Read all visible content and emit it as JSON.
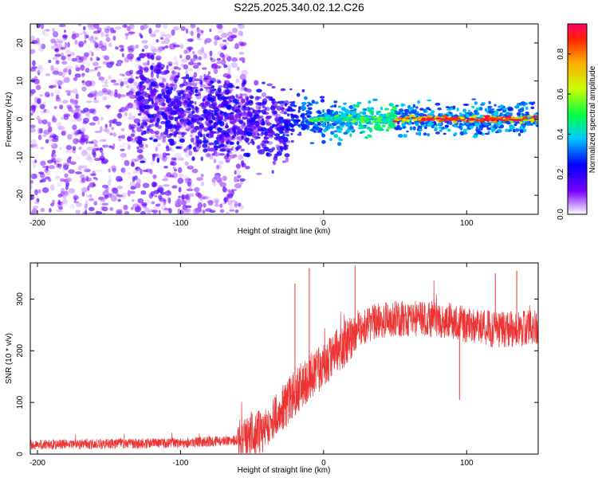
{
  "title": "S225.2025.340.02.12.C26",
  "charts": [
    {
      "type": "heatmap",
      "xlabel": "Height of straight line (km)",
      "ylabel": "Frequency (Hz)",
      "xlim": [
        -205,
        150
      ],
      "ylim": [
        -25,
        25
      ],
      "xticks": [
        -200,
        -100,
        0,
        100
      ],
      "yticks": [
        -20,
        -10,
        0,
        10,
        20
      ],
      "colorbar": {
        "label": "Normalized spectral amplitude",
        "range": [
          0,
          0.95
        ],
        "ticks": [
          0.0,
          0.2,
          0.4,
          0.6,
          0.8
        ]
      },
      "features": [
        {
          "x_start": -205,
          "x_end": -60,
          "description_values": {
            "frequency_spread_hz": [
              -25,
              25
            ],
            "amplitude": [
              0.0,
              0.2
            ]
          }
        },
        {
          "x_start": -130,
          "x_end": -30,
          "description_values": {
            "frequency_center_hz": [
              5,
              -5
            ],
            "amplitude": [
              0.1,
              0.3
            ]
          }
        },
        {
          "x_start": -30,
          "x_end": 50,
          "description_values": {
            "frequency_center_hz": [
              0,
              0
            ],
            "amplitude": [
              0.2,
              0.4
            ]
          }
        },
        {
          "x_start": 50,
          "x_end": 150,
          "description_values": {
            "frequency_center_hz": [
              0,
              0
            ],
            "amplitude": [
              0.5,
              0.95
            ]
          }
        }
      ]
    },
    {
      "type": "line",
      "xlabel": "Height of straight line (km)",
      "ylabel": "SNR (10 * v/v)",
      "xlim": [
        -205,
        150
      ],
      "ylim": [
        0,
        370
      ],
      "xticks": [
        -200,
        -100,
        0,
        100
      ],
      "yticks": [
        0,
        100,
        200,
        300
      ],
      "color": "#ee3333",
      "trend": {
        "x": [
          -205,
          -150,
          -100,
          -70,
          -55,
          -45,
          -35,
          -25,
          -15,
          -5,
          5,
          15,
          25,
          35,
          50,
          70,
          90,
          100,
          110,
          120,
          130,
          150
        ],
        "y": [
          18,
          20,
          22,
          25,
          28,
          40,
          70,
          100,
          135,
          160,
          185,
          215,
          240,
          255,
          262,
          262,
          258,
          250,
          245,
          240,
          242,
          245
        ]
      },
      "spikes": [
        {
          "x": -10,
          "y": 360
        },
        {
          "x": -20,
          "y": 330
        },
        {
          "x": 22,
          "y": 365
        },
        {
          "x": 95,
          "y": 105
        },
        {
          "x": 120,
          "y": 350
        },
        {
          "x": 135,
          "y": 355
        }
      ]
    }
  ]
}
